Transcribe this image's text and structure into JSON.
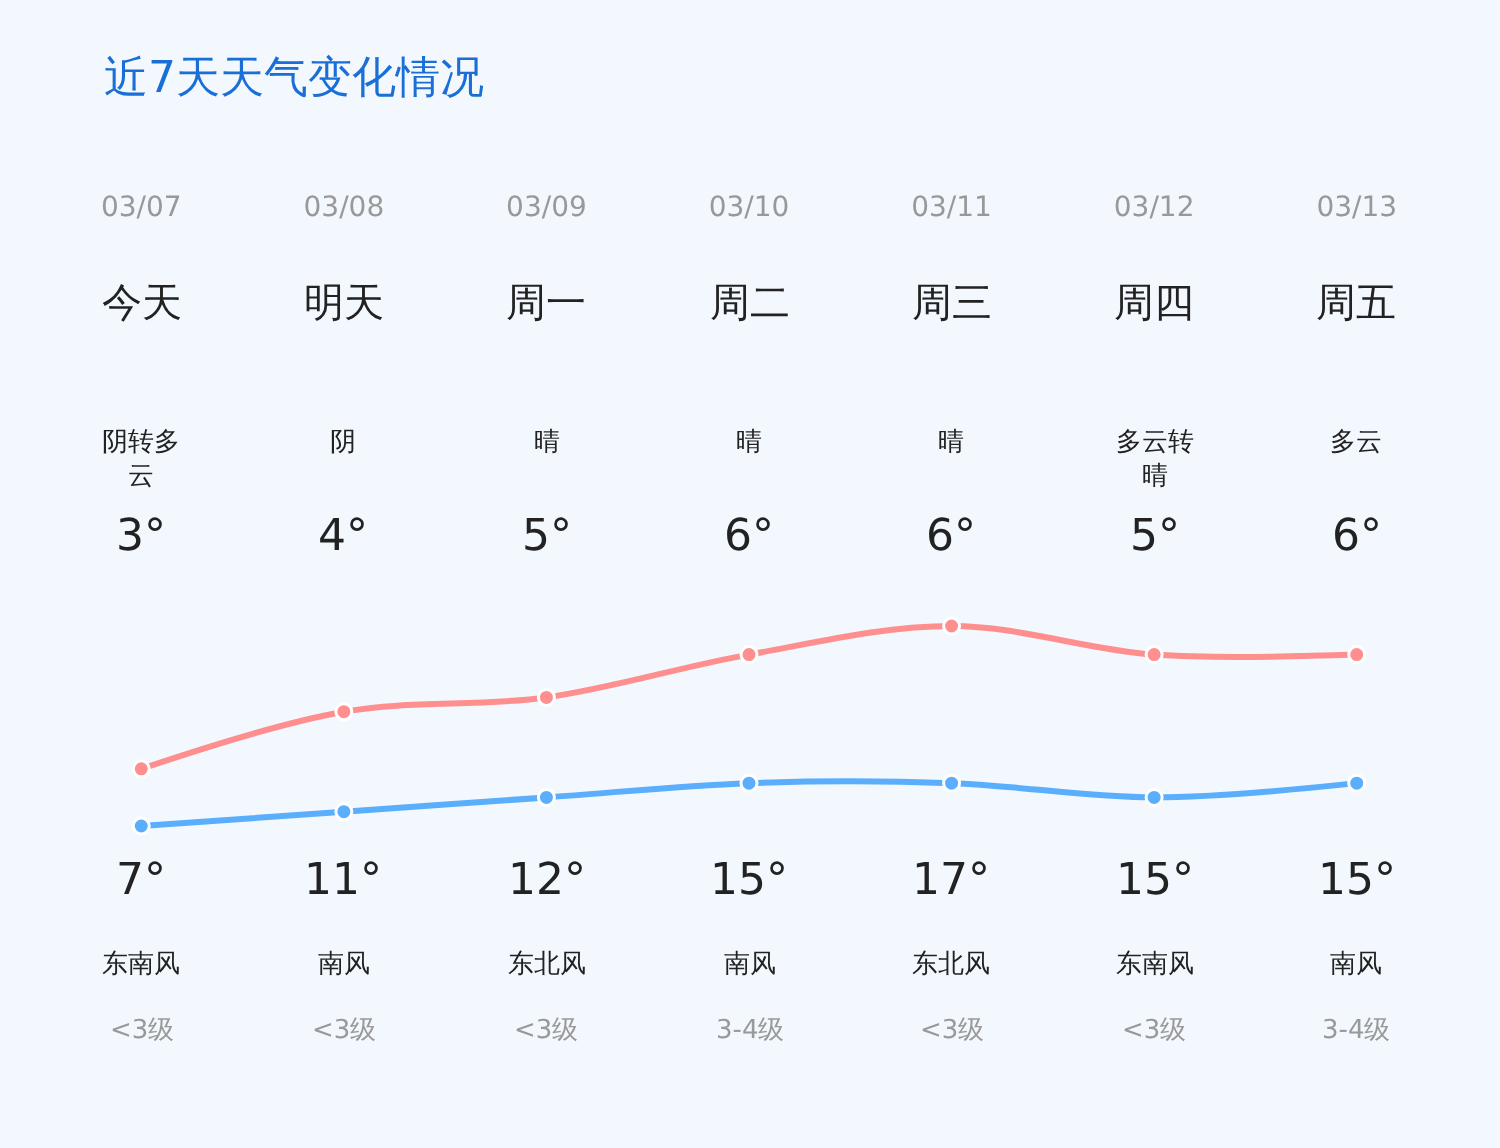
{
  "chart_data": {
    "type": "line",
    "title": "近7天天气变化情况",
    "categories": [
      "03/07",
      "03/08",
      "03/09",
      "03/10",
      "03/11",
      "03/12",
      "03/13"
    ],
    "series": [
      {
        "color": "#5aaefc",
        "values": [
          3,
          4,
          5,
          6,
          6,
          5,
          6
        ],
        "value_labels": [
          "3°",
          "4°",
          "5°",
          "6°",
          "6°",
          "5°",
          "6°"
        ]
      },
      {
        "color": "#ff8f8f",
        "values": [
          7,
          11,
          12,
          15,
          17,
          15,
          15
        ],
        "value_labels": [
          "7°",
          "11°",
          "12°",
          "15°",
          "17°",
          "15°",
          "15°"
        ]
      }
    ],
    "marker": "circle",
    "line_style": "solid",
    "grid": false,
    "legend": false,
    "annotations": [
      "今天",
      "明天",
      "周一",
      "周二",
      "周三",
      "周四",
      "周五",
      "阴转多云",
      "阴",
      "晴",
      "晴",
      "晴",
      "多云转晴",
      "多云",
      "东南风",
      "南风",
      "东北风",
      "南风",
      "东北风",
      "东南风",
      "南风",
      "<3级",
      "<3级",
      "<3级",
      "3-4级",
      "<3级",
      "<3级",
      "3-4级"
    ]
  }
}
